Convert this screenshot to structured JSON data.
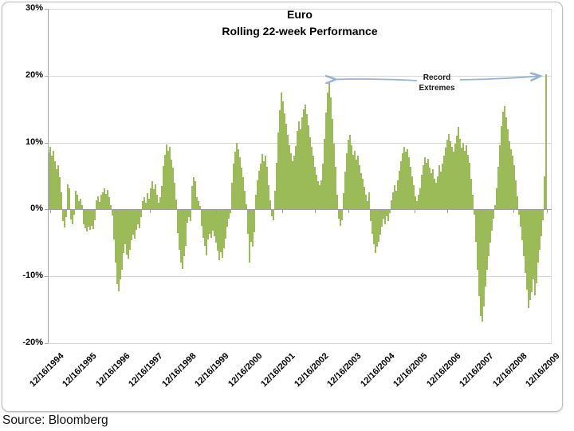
{
  "page": {
    "source_note": "Source: Bloomberg"
  },
  "colors": {
    "bar": "#9BBB59",
    "gridline": "#D6D6D6",
    "axis": "#9E9E9E",
    "arrow": "#95B3D7",
    "frame_border": "#BDBDBD",
    "text": "#000000"
  },
  "chart_data": {
    "type": "bar",
    "title": "Euro",
    "subtitle": "Rolling 22-week Performance",
    "unit": "%",
    "ylim": [
      -20,
      30
    ],
    "grid": "horizontal",
    "legend": "none",
    "y_tick_values": [
      30,
      20,
      10,
      0,
      -10,
      -20
    ],
    "y_tick_labels": [
      "30%",
      "20%",
      "10%",
      "0%",
      "-10%",
      "-20%"
    ],
    "x_tick_labels": [
      "12/16/1994",
      "12/16/1995",
      "12/16/1996",
      "12/16/1997",
      "12/16/1998",
      "12/16/1999",
      "12/16/2000",
      "12/16/2001",
      "12/16/2002",
      "12/16/2003",
      "12/16/2004",
      "12/16/2005",
      "12/16/2006",
      "12/16/2007",
      "12/16/2008",
      "12/16/2009"
    ],
    "annotation": {
      "line1": "Record",
      "line2": "Extremes",
      "arrow_color": "#95B3D7",
      "points_to": [
        "+19% peak near 2003",
        "+20% spike at series end (2009/10)"
      ]
    },
    "sampling_note": "values in percent, estimated from pixels at ~21 samples per year from 12/16/1994 to early 2010",
    "values": [
      8.5,
      9.3,
      8.0,
      8.8,
      7.2,
      6.0,
      6.6,
      4.8,
      2.5,
      -1.8,
      -2.7,
      -1.2,
      3.8,
      3.2,
      -1.5,
      -2.2,
      -0.8,
      2.8,
      2.2,
      1.2,
      1.6,
      0.6,
      -2.2,
      -2.8,
      -3.3,
      -2.6,
      -3.1,
      -2.4,
      -2.9,
      -1.6,
      1.4,
      1.9,
      1.1,
      2.2,
      2.6,
      3.1,
      2.3,
      2.9,
      1.8,
      0.6,
      -0.9,
      -4.5,
      -8.0,
      -11.2,
      -12.3,
      -10.5,
      -9.0,
      -6.5,
      -5.2,
      -6.8,
      -7.4,
      -6.0,
      -4.6,
      -3.8,
      -4.4,
      -3.0,
      -2.2,
      -2.8,
      -1.2,
      1.2,
      1.8,
      1.0,
      2.4,
      1.6,
      3.2,
      4.2,
      3.0,
      3.8,
      2.2,
      1.0,
      1.8,
      3.5,
      6.5,
      8.2,
      9.7,
      8.8,
      9.3,
      7.5,
      6.2,
      4.0,
      1.5,
      -3.5,
      -6.0,
      -8.0,
      -8.9,
      -7.0,
      -5.5,
      -2.0,
      -1.2,
      -1.8,
      3.5,
      4.8,
      4.2,
      1.8,
      1.2,
      0.5,
      -2.5,
      -4.2,
      -5.5,
      -6.9,
      -4.5,
      -3.6,
      -4.2,
      -3.2,
      -4.0,
      -5.0,
      -6.2,
      -7.6,
      -6.4,
      -7.2,
      -5.8,
      -4.4,
      -2.6,
      -1.4,
      -0.6,
      4.0,
      6.8,
      8.6,
      9.9,
      9.0,
      7.8,
      6.2,
      4.8,
      2.8,
      0.8,
      -3.6,
      -7.9,
      -4.8,
      -5.6,
      -3.4,
      2.2,
      4.4,
      5.8,
      6.8,
      8.3,
      7.2,
      8.0,
      6.4,
      3.6,
      1.4,
      -1.0,
      -1.6,
      2.8,
      7.0,
      11.5,
      14.8,
      17.5,
      16.2,
      14.4,
      12.8,
      11.2,
      9.6,
      8.4,
      7.2,
      8.0,
      9.5,
      11.8,
      13.2,
      12.0,
      13.8,
      15.0,
      15.7,
      14.2,
      12.6,
      10.8,
      9.4,
      8.0,
      6.4,
      5.2,
      4.2,
      3.6,
      4.4,
      6.8,
      10.5,
      14.5,
      17.5,
      19.0,
      16.8,
      13.5,
      9.8,
      6.4,
      2.2,
      -1.4,
      -2.4,
      -1.6,
      2.4,
      5.6,
      8.4,
      10.4,
      11.2,
      9.6,
      8.2,
      8.8,
      7.4,
      8.0,
      6.6,
      5.4,
      4.6,
      3.4,
      2.2,
      1.2,
      2.6,
      -1.8,
      -3.6,
      -5.2,
      -6.5,
      -5.6,
      -4.8,
      -3.8,
      -2.6,
      -1.4,
      -2.2,
      -1.0,
      -1.8,
      -0.6,
      1.4,
      2.6,
      3.6,
      2.8,
      4.4,
      5.8,
      7.2,
      8.4,
      9.4,
      8.6,
      9.0,
      7.8,
      6.4,
      5.0,
      3.6,
      2.0,
      1.2,
      2.2,
      3.2,
      5.2,
      6.6,
      7.8,
      7.0,
      7.6,
      6.2,
      5.4,
      6.0,
      4.6,
      4.0,
      5.0,
      6.6,
      5.6,
      6.8,
      8.0,
      9.2,
      10.4,
      11.3,
      10.2,
      9.4,
      8.6,
      9.8,
      11.0,
      12.3,
      10.6,
      9.2,
      10.0,
      8.8,
      9.6,
      8.2,
      7.0,
      4.6,
      2.2,
      -0.8,
      -4.8,
      -9.0,
      -13.0,
      -16.0,
      -16.8,
      -14.5,
      -11.5,
      -9.0,
      -7.0,
      -5.0,
      -3.2,
      -1.4,
      0.6,
      3.2,
      6.4,
      9.6,
      12.4,
      14.6,
      15.5,
      13.8,
      12.0,
      10.2,
      9.0,
      8.0,
      6.6,
      4.4,
      2.0,
      -0.8,
      -2.6,
      -4.6,
      -7.0,
      -9.5,
      -12.0,
      -14.8,
      -13.6,
      -12.4,
      -10.5,
      -12.8,
      -11.0,
      -8.0,
      -6.0,
      -4.0,
      -1.6,
      5.0,
      20.2
    ]
  }
}
